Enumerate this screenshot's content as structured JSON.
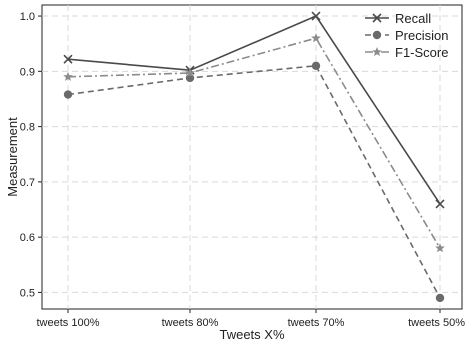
{
  "chart_data": {
    "type": "line",
    "title": "",
    "xlabel": "Tweets X%",
    "ylabel": "Measurement",
    "categories": [
      "tweets 100%",
      "tweets 80%",
      "tweets 70%",
      "tweets 50%"
    ],
    "ylim": [
      0.47,
      1.02
    ],
    "yticks": [
      0.5,
      0.6,
      0.7,
      0.8,
      0.9,
      1.0
    ],
    "ytick_labels": [
      "0.5",
      "0.6",
      "0.7",
      "0.8",
      "0.9",
      "1.0"
    ],
    "grid": true,
    "legend_position": "top-right",
    "series": [
      {
        "name": "Recall",
        "values": [
          0.922,
          0.902,
          1.0,
          0.66
        ],
        "color": "#4a4a4a",
        "line_style": "solid",
        "marker": "x"
      },
      {
        "name": "Precision",
        "values": [
          0.858,
          0.888,
          0.91,
          0.49
        ],
        "color": "#6a6a6a",
        "line_style": "dashed",
        "marker": "circle"
      },
      {
        "name": "F1-Score",
        "values": [
          0.89,
          0.897,
          0.96,
          0.58
        ],
        "color": "#8c8c8c",
        "line_style": "dashdot",
        "marker": "star"
      }
    ]
  }
}
